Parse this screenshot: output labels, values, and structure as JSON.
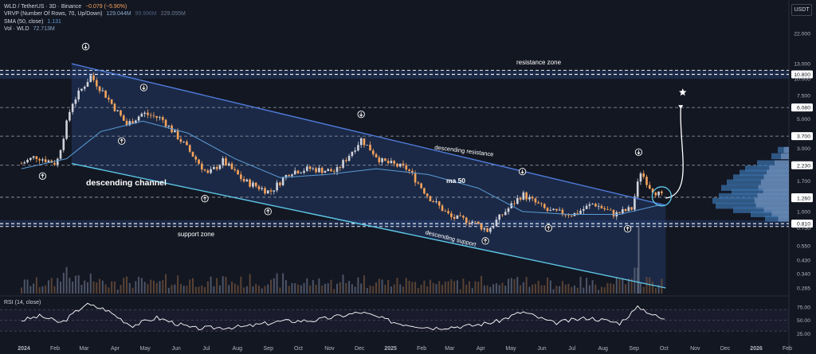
{
  "legend": {
    "pair": "WLD / TetherUS · 3D · Binance",
    "pair_change": "−0.079 (−5.90%)",
    "vrvp": "VRVP (Number Of Rows, 70, Up/Down)",
    "vrvp_v1": "129.044M",
    "vrvp_v2": "99.996M",
    "vrvp_v3": "229.055M",
    "sma": "SMA (50, close)",
    "sma_val": "1.131",
    "vol": "Vol · WLD",
    "vol_val": "72.713M"
  },
  "rsi_legend": "RSI (14, close)",
  "currency": "USDT",
  "colors": {
    "up": "#d1d4dc",
    "down": "#f7a35c",
    "sma": "#5b9bd5",
    "channel": "#4f7bdb",
    "support_line": "#5ec8e8",
    "accent": "#2962ff"
  },
  "chart_data": {
    "type": "candlestick",
    "y_scale": "log",
    "price_ticks": [
      "22.000",
      "13.000",
      "10.800",
      "10.000",
      "7.500",
      "6.080",
      "5.000",
      "3.700",
      "3.000",
      "2.230",
      "1.700",
      "1.280",
      "1.260",
      "1.000",
      "0.810",
      "0.750",
      "0.550",
      "0.430",
      "0.340",
      "0.265"
    ],
    "price_highlight_labels": [
      "10.800",
      "6.080",
      "3.700",
      "2.230",
      "1.280",
      "1.260",
      "0.810"
    ],
    "x_ticks": [
      "2024",
      "Feb",
      "Mar",
      "Apr",
      "May",
      "Jun",
      "Jul",
      "Aug",
      "Sep",
      "Oct",
      "Nov",
      "Dec",
      "2025",
      "Feb",
      "Mar",
      "Apr",
      "May",
      "Jun",
      "Jul",
      "Aug",
      "Sep",
      "Oct",
      "Nov",
      "Dec",
      "2026",
      "Feb"
    ],
    "horizontal_levels": [
      10.8,
      6.08,
      3.7,
      2.23,
      1.28,
      0.81
    ],
    "annotations": [
      "resistance zone",
      "descending channel",
      "descending resistance",
      "ma 50",
      "support zone",
      "descending support"
    ],
    "close_path": [
      [
        "2024-01-01",
        2.3
      ],
      [
        "2024-01-15",
        2.6
      ],
      [
        "2024-02-05",
        2.3
      ],
      [
        "2024-02-20",
        6.5
      ],
      [
        "2024-03-10",
        10.5
      ],
      [
        "2024-03-25",
        7.5
      ],
      [
        "2024-04-15",
        4.5
      ],
      [
        "2024-05-01",
        5.5
      ],
      [
        "2024-05-20",
        5.0
      ],
      [
        "2024-06-10",
        3.3
      ],
      [
        "2024-07-05",
        1.9
      ],
      [
        "2024-07-20",
        2.4
      ],
      [
        "2024-08-10",
        1.7
      ],
      [
        "2024-09-05",
        1.4
      ],
      [
        "2024-09-25",
        2.0
      ],
      [
        "2024-10-15",
        2.1
      ],
      [
        "2024-11-10",
        2.0
      ],
      [
        "2024-12-05",
        3.5
      ],
      [
        "2024-12-25",
        2.4
      ],
      [
        "2025-01-20",
        2.1
      ],
      [
        "2025-02-10",
        1.3
      ],
      [
        "2025-03-05",
        0.9
      ],
      [
        "2025-03-25",
        0.85
      ],
      [
        "2025-04-10",
        0.72
      ],
      [
        "2025-04-25",
        0.95
      ],
      [
        "2025-05-15",
        1.35
      ],
      [
        "2025-06-10",
        1.0
      ],
      [
        "2025-07-05",
        0.95
      ],
      [
        "2025-07-25",
        1.15
      ],
      [
        "2025-08-15",
        0.95
      ],
      [
        "2025-09-01",
        1.05
      ],
      [
        "2025-09-10",
        2.0
      ],
      [
        "2025-09-20",
        1.5
      ],
      [
        "2025-10-01",
        1.3
      ]
    ],
    "sma50": [
      [
        "2024-01-01",
        2.1
      ],
      [
        "2024-02-15",
        2.5
      ],
      [
        "2024-03-20",
        4.0
      ],
      [
        "2024-05-01",
        4.8
      ],
      [
        "2024-06-15",
        3.9
      ],
      [
        "2024-08-01",
        2.5
      ],
      [
        "2024-09-15",
        1.8
      ],
      [
        "2024-11-01",
        1.9
      ],
      [
        "2024-12-20",
        2.1
      ],
      [
        "2025-02-10",
        1.9
      ],
      [
        "2025-04-01",
        1.5
      ],
      [
        "2025-05-15",
        1.0
      ],
      [
        "2025-07-01",
        0.95
      ],
      [
        "2025-08-20",
        0.95
      ],
      [
        "2025-10-01",
        1.13
      ]
    ],
    "channel": {
      "upper": [
        [
          "2024-02-20",
          13.0
        ],
        [
          "2025-09-05",
          1.26
        ]
      ],
      "lower": [
        [
          "2024-02-20",
          2.3
        ],
        [
          "2025-10-05",
          0.265
        ]
      ]
    },
    "projection": {
      "from": [
        "2025-10-05",
        1.26
      ],
      "to": [
        "2025-10-20",
        6.0
      ]
    },
    "rsi": {
      "ticks": [
        "75.00",
        "50.00",
        "25.00"
      ],
      "values": [
        [
          "2024-01-01",
          50
        ],
        [
          "2024-01-20",
          58
        ],
        [
          "2024-02-10",
          45
        ],
        [
          "2024-03-05",
          80
        ],
        [
          "2024-03-25",
          70
        ],
        [
          "2024-04-20",
          40
        ],
        [
          "2024-05-15",
          55
        ],
        [
          "2024-06-20",
          35
        ],
        [
          "2024-08-10",
          38
        ],
        [
          "2024-09-15",
          48
        ],
        [
          "2024-10-20",
          50
        ],
        [
          "2024-12-05",
          65
        ],
        [
          "2025-01-10",
          45
        ],
        [
          "2025-02-15",
          36
        ],
        [
          "2025-03-25",
          40
        ],
        [
          "2025-04-20",
          48
        ],
        [
          "2025-05-15",
          66
        ],
        [
          "2025-06-15",
          45
        ],
        [
          "2025-07-20",
          55
        ],
        [
          "2025-08-20",
          45
        ],
        [
          "2025-09-08",
          75
        ],
        [
          "2025-09-25",
          58
        ],
        [
          "2025-10-05",
          50
        ]
      ]
    }
  }
}
